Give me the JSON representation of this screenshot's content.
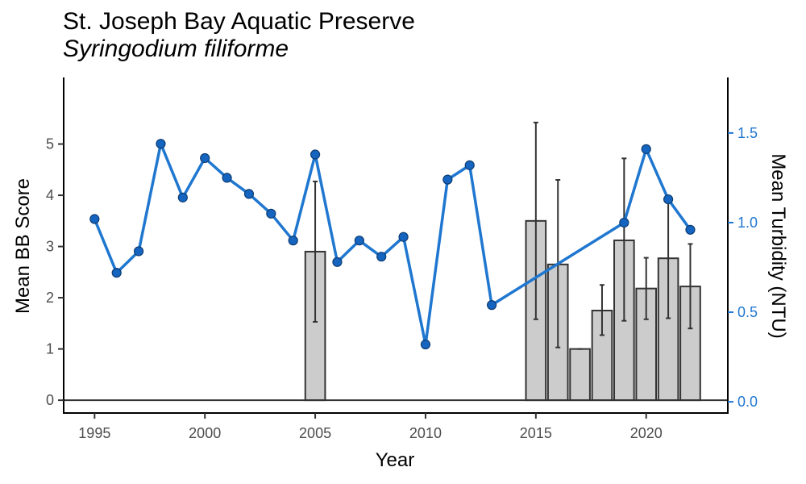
{
  "title": "St. Joseph Bay Aquatic Preserve",
  "subtitle": "Syringodium filiforme",
  "colors": {
    "bar_fill": "#cccccc",
    "bar_stroke": "#333333",
    "line": "#1f77d0",
    "point_fill": "#1565c0",
    "point_stroke": "#0d3c73",
    "right_axis": "#1f77d0"
  },
  "chart_data": {
    "type": "bar",
    "title": "St. Joseph Bay Aquatic Preserve",
    "subtitle": "Syringodium filiforme",
    "xlabel": "Year",
    "ylabel": "Mean BB Score",
    "y2label": "Mean Turbidity (NTU)",
    "xlim": [
      1993.6,
      2023.7
    ],
    "ylim": [
      -0.25,
      6.3
    ],
    "y2lim": [
      -0.0625,
      1.81
    ],
    "xticks": [
      "1995",
      "2000",
      "2005",
      "2010",
      "2015",
      "2020"
    ],
    "yticks": [
      "0",
      "1",
      "2",
      "3",
      "4",
      "5"
    ],
    "y2ticks": [
      "0.0",
      "0.5",
      "1.0",
      "1.5"
    ],
    "grid": false,
    "legend": "none",
    "bars": [
      {
        "x": 2005,
        "value": 2.9,
        "lower": 1.53,
        "upper": 4.27
      },
      {
        "x": 2015,
        "value": 3.5,
        "lower": 1.58,
        "upper": 5.42
      },
      {
        "x": 2016,
        "value": 2.65,
        "lower": 1.03,
        "upper": 4.3
      },
      {
        "x": 2017,
        "value": 1.0,
        "lower": 1.0,
        "upper": 1.0
      },
      {
        "x": 2018,
        "value": 1.75,
        "lower": 1.27,
        "upper": 2.25
      },
      {
        "x": 2019,
        "value": 3.12,
        "lower": 1.55,
        "upper": 4.72
      },
      {
        "x": 2020,
        "value": 2.18,
        "lower": 1.58,
        "upper": 2.78
      },
      {
        "x": 2021,
        "value": 2.77,
        "lower": 1.6,
        "upper": 3.94
      },
      {
        "x": 2022,
        "value": 2.22,
        "lower": 1.4,
        "upper": 3.05
      }
    ],
    "turbidity": {
      "name": "Mean Turbidity (NTU)",
      "x": [
        1995,
        1996,
        1997,
        1998,
        1999,
        2000,
        2001,
        2002,
        2003,
        2004,
        2005,
        2006,
        2007,
        2008,
        2009,
        2010,
        2011,
        2012,
        2013,
        2019,
        2020,
        2021,
        2022
      ],
      "values": [
        1.02,
        0.72,
        0.84,
        1.44,
        1.14,
        1.36,
        1.25,
        1.16,
        1.05,
        0.9,
        1.38,
        0.78,
        0.9,
        0.81,
        0.92,
        0.32,
        1.24,
        1.32,
        0.54,
        1.0,
        1.41,
        1.13,
        0.96
      ]
    }
  }
}
